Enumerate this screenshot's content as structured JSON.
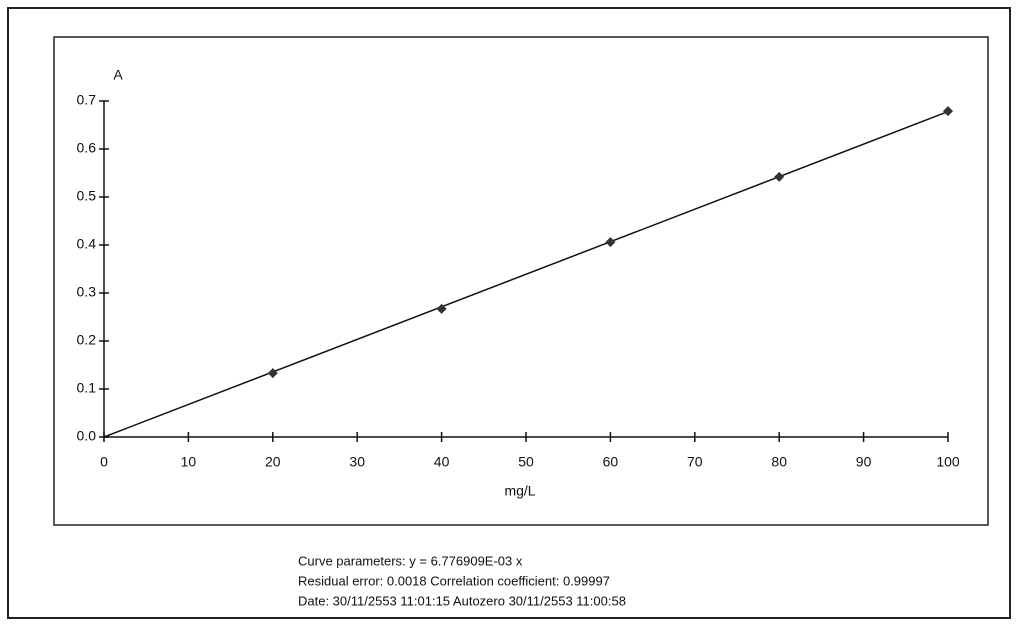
{
  "chart_data": {
    "type": "scatter",
    "y_label": "A",
    "x_label": "mg/L",
    "x": [
      20,
      40,
      60,
      80,
      100
    ],
    "values": [
      0.133,
      0.267,
      0.406,
      0.542,
      0.679
    ],
    "color": "#333333",
    "fit_line": {
      "x": [
        0,
        100
      ],
      "values": [
        0,
        0.678
      ],
      "color": "#111111"
    },
    "xlim": [
      0,
      100
    ],
    "xticks": [
      0,
      10,
      20,
      30,
      40,
      50,
      60,
      70,
      80,
      90,
      100
    ],
    "ylim": [
      0,
      0.7
    ],
    "yticks": [
      {
        "value": 0,
        "label": "0.0"
      },
      0.1,
      0.2,
      0.3,
      0.4,
      0.5,
      0.6,
      0.7
    ],
    "grid": false,
    "footer": [
      "Curve parameters: y = 6.776909E-03 x",
      "Residual error: 0.0018    Correlation coefficient: 0.99997",
      "Date: 30/11/2553 11:01:15  Autozero 30/11/2553 11:00:58"
    ]
  }
}
